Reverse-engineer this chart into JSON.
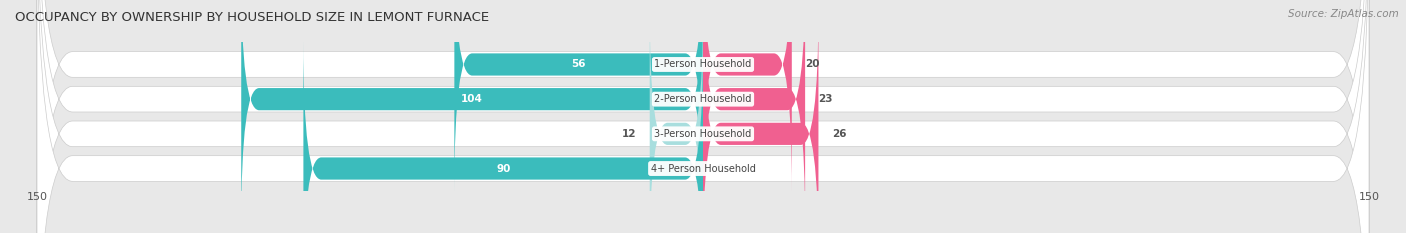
{
  "title": "OCCUPANCY BY OWNERSHIP BY HOUSEHOLD SIZE IN LEMONT FURNACE",
  "source": "Source: ZipAtlas.com",
  "categories": [
    "1-Person Household",
    "2-Person Household",
    "3-Person Household",
    "4+ Person Household"
  ],
  "owner_values": [
    56,
    104,
    12,
    90
  ],
  "renter_values": [
    20,
    23,
    26,
    0
  ],
  "owner_color": "#3bbcbc",
  "owner_color_light": "#a8dede",
  "renter_color": "#f06090",
  "renter_color_light": "#f8b8cc",
  "axis_max": 150,
  "axis_min": -150,
  "bg_color": "#e8e8e8",
  "row_bg_color": "#f0f0f0",
  "title_fontsize": 9.5,
  "source_fontsize": 7.5,
  "bar_label_fontsize": 7.5,
  "category_fontsize": 7,
  "axis_tick_fontsize": 8,
  "legend_fontsize": 8
}
